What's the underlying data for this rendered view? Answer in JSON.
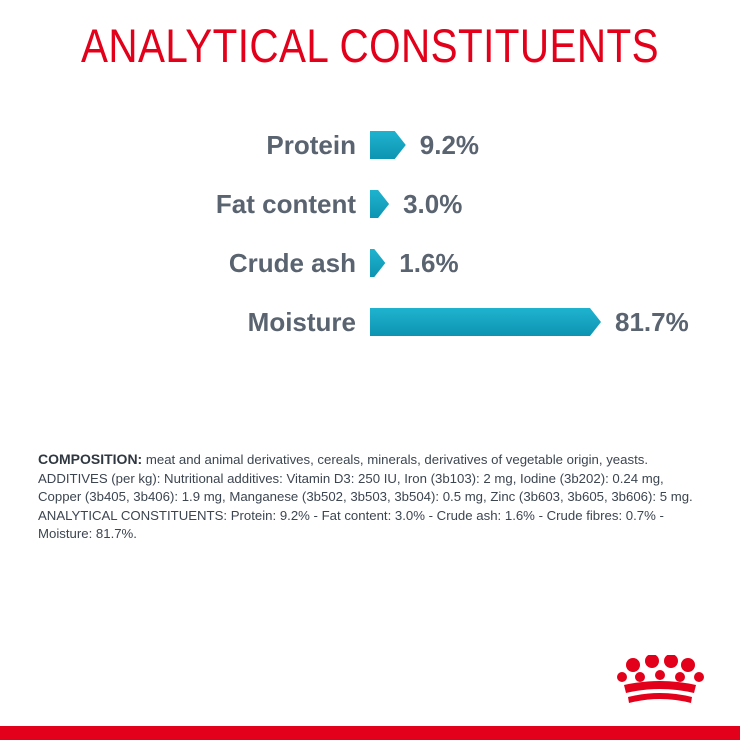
{
  "title": "ANALYTICAL CONSTITUENTS",
  "colors": {
    "title": "#e2001a",
    "bar": "#1fb3cf",
    "bar_dark": "#0d94b3",
    "label": "#5a6370",
    "band": "#e2001a"
  },
  "chart_data": {
    "type": "bar",
    "orientation": "horizontal",
    "categories": [
      "Protein",
      "Fat content",
      "Crude ash",
      "Moisture"
    ],
    "values": [
      9.2,
      3.0,
      1.6,
      81.7
    ],
    "value_labels": [
      "9.2%",
      "3.0%",
      "1.6%",
      "81.7%"
    ],
    "title": "ANALYTICAL CONSTITUENTS",
    "xlim": [
      0,
      81.7
    ],
    "grid": false
  },
  "composition": {
    "lead": "COMPOSITION:",
    "lead_text": " meat and animal derivatives, cereals, minerals, derivatives of vegetable origin, yeasts.",
    "additives": "ADDITIVES (per kg): Nutritional additives: Vitamin D3: 250 IU, Iron (3b103): 2 mg, Iodine (3b202): 0.24 mg, Copper (3b405, 3b406): 1.9 mg, Manganese (3b502, 3b503, 3b504): 0.5 mg, Zinc (3b603, 3b605, 3b606): 5 mg.",
    "constituents": "ANALYTICAL CONSTITUENTS: Protein: 9.2% - Fat content: 3.0% - Crude ash: 1.6% - Crude fibres: 0.7% - Moisture: 81.7%."
  },
  "logo_icon": "crown-icon"
}
